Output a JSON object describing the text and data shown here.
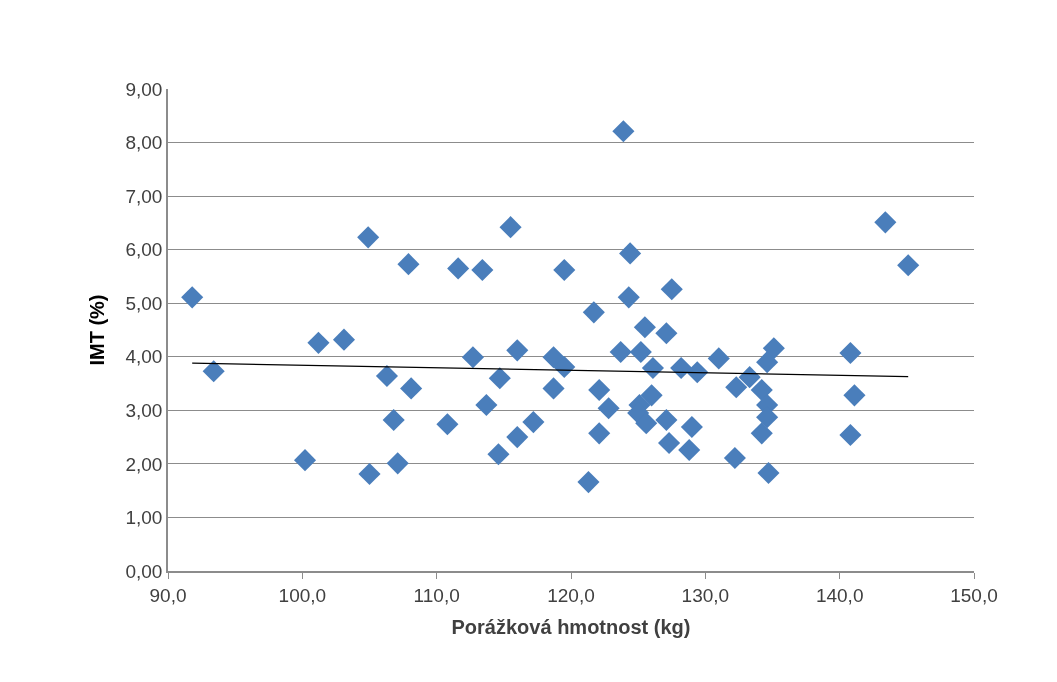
{
  "chart_data": {
    "type": "scatter",
    "xlabel": "Porážková hmotnost (kg)",
    "ylabel": "IMT (%)",
    "xlim": [
      90,
      150
    ],
    "xticks": [
      {
        "value": 90,
        "label": "90,0"
      },
      {
        "value": 100,
        "label": "100,0"
      },
      {
        "value": 110,
        "label": "110,0"
      },
      {
        "value": 120,
        "label": "120,0"
      },
      {
        "value": 130,
        "label": "130,0"
      },
      {
        "value": 140,
        "label": "140,0"
      },
      {
        "value": 150,
        "label": "150,0"
      }
    ],
    "ylim": [
      0,
      9
    ],
    "yticks": [
      {
        "value": 0,
        "label": "0,00"
      },
      {
        "value": 1,
        "label": "1,00"
      },
      {
        "value": 2,
        "label": "2,00"
      },
      {
        "value": 3,
        "label": "3,00"
      },
      {
        "value": 4,
        "label": "4,00"
      },
      {
        "value": 5,
        "label": "5,00"
      },
      {
        "value": 6,
        "label": "6,00"
      },
      {
        "value": 7,
        "label": "7,00"
      },
      {
        "value": 8,
        "label": "8,00"
      },
      {
        "value": 9,
        "label": "9,00"
      }
    ],
    "grid": "y",
    "marker": "diamond",
    "series": [
      {
        "color": "#4a7ebb",
        "x": [
          91.8,
          93.4,
          100.2,
          101.2,
          103.1,
          104.9,
          105.0,
          106.3,
          106.8,
          107.1,
          107.9,
          108.1,
          110.8,
          111.6,
          112.7,
          113.4,
          113.7,
          114.6,
          114.7,
          115.5,
          116.0,
          116.0,
          117.2,
          118.7,
          119.5,
          119.5,
          118.7,
          121.3,
          121.7,
          122.1,
          122.8,
          122.1,
          123.9,
          124.4,
          124.3,
          123.7,
          125.5,
          127.1,
          127.5,
          125.2,
          126.1,
          126.0,
          125.1,
          125.0,
          125.6,
          127.1,
          129.0,
          127.3,
          128.8,
          128.2,
          129.4,
          131.0,
          132.3,
          132.2,
          133.3,
          134.2,
          134.6,
          134.6,
          134.2,
          134.7,
          135.1,
          134.6,
          140.8,
          141.1,
          140.8,
          143.4,
          145.1
        ],
        "values": [
          5.11,
          3.73,
          2.07,
          4.26,
          4.32,
          6.23,
          1.81,
          3.64,
          2.82,
          2.01,
          5.73,
          3.41,
          2.74,
          5.65,
          3.99,
          5.62,
          3.1,
          2.18,
          3.6,
          6.42,
          2.5,
          4.12,
          2.78,
          3.99,
          3.81,
          5.62,
          3.41,
          1.66,
          4.83,
          3.38,
          3.04,
          2.57,
          8.21,
          5.93,
          5.11,
          4.09,
          4.55,
          4.44,
          5.26,
          4.09,
          3.79,
          3.28,
          3.1,
          2.95,
          2.76,
          2.82,
          2.69,
          2.39,
          2.26,
          3.79,
          3.71,
          3.97,
          3.43,
          2.11,
          3.62,
          3.38,
          3.1,
          2.87,
          2.57,
          1.83,
          4.16,
          3.9,
          4.07,
          3.28,
          2.54,
          6.51,
          5.71
        ]
      },
      {
        "type": "line",
        "marker": "none",
        "color": "#000000",
        "x": [
          91.8,
          145.1
        ],
        "values": [
          3.88,
          3.63
        ]
      }
    ]
  }
}
